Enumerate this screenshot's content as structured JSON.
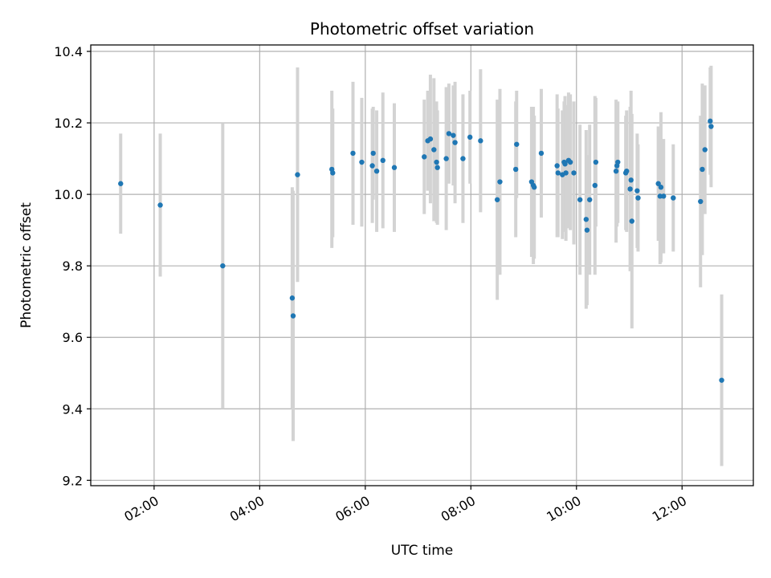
{
  "chart_data": {
    "type": "scatter",
    "title": "Photometric offset variation",
    "xlabel": "UTC time",
    "ylabel": "Photometric offset",
    "x_tick_labels": [
      "02:00",
      "04:00",
      "06:00",
      "08:00",
      "10:00",
      "12:00"
    ],
    "x_ticks_hours": [
      2,
      4,
      6,
      8,
      10,
      12
    ],
    "y_tick_labels": [
      "9.2",
      "9.4",
      "9.6",
      "9.8",
      "10.0",
      "10.2",
      "10.4"
    ],
    "y_ticks": [
      9.2,
      9.4,
      9.6,
      9.8,
      10.0,
      10.2,
      10.4
    ],
    "xlim_hours": [
      0.8,
      13.35
    ],
    "ylim": [
      9.185,
      10.418
    ],
    "grid": true,
    "colors": {
      "points": "#1f77b4",
      "error_bars": "#d3d3d3",
      "grid": "#b0b0b0"
    },
    "series": [
      {
        "x_utc": [
          "01:22",
          "02:07",
          "03:18",
          "04:37",
          "04:38",
          "04:43",
          "05:22",
          "05:23",
          "05:46",
          "05:56",
          "06:08",
          "06:09",
          "06:13",
          "06:20",
          "06:33",
          "07:07",
          "07:11",
          "07:14",
          "07:18",
          "07:21",
          "07:22",
          "07:32",
          "07:35",
          "07:40",
          "07:42",
          "07:51",
          "07:59",
          "08:11",
          "08:30",
          "08:33",
          "08:51",
          "08:52",
          "09:09",
          "09:11",
          "09:12",
          "09:20",
          "09:38",
          "09:39",
          "09:44",
          "09:46",
          "09:47",
          "09:48",
          "09:51",
          "09:53",
          "09:57",
          "10:04",
          "10:11",
          "10:12",
          "10:15",
          "10:21",
          "10:22",
          "10:45",
          "10:46",
          "10:47",
          "10:56",
          "10:57",
          "11:01",
          "11:02",
          "11:03",
          "11:09",
          "11:10",
          "11:33",
          "11:35",
          "11:36",
          "11:39",
          "11:50",
          "12:21",
          "12:23",
          "12:26",
          "12:32",
          "12:33",
          "12:45"
        ],
        "y": [
          10.03,
          9.97,
          9.8,
          9.71,
          9.66,
          10.055,
          10.07,
          10.06,
          10.115,
          10.09,
          10.08,
          10.115,
          10.065,
          10.095,
          10.075,
          10.105,
          10.15,
          10.155,
          10.125,
          10.09,
          10.075,
          10.1,
          10.17,
          10.165,
          10.145,
          10.1,
          10.16,
          10.15,
          9.985,
          10.035,
          10.07,
          10.14,
          10.035,
          10.025,
          10.02,
          10.115,
          10.08,
          10.06,
          10.055,
          10.09,
          10.085,
          10.06,
          10.095,
          10.09,
          10.06,
          9.985,
          9.93,
          9.9,
          9.985,
          10.025,
          10.09,
          10.065,
          10.08,
          10.09,
          10.06,
          10.065,
          10.015,
          10.04,
          9.925,
          10.01,
          9.99,
          10.03,
          9.995,
          10.02,
          9.995,
          9.99,
          9.98,
          10.07,
          10.125,
          10.205,
          10.19,
          9.48
        ],
        "y_err": [
          0.14,
          0.2,
          0.4,
          0.31,
          0.35,
          0.3,
          0.22,
          0.18,
          0.2,
          0.18,
          0.16,
          0.13,
          0.17,
          0.19,
          0.18,
          0.16,
          0.14,
          0.18,
          0.2,
          0.17,
          0.16,
          0.2,
          0.14,
          0.14,
          0.17,
          0.18,
          0.13,
          0.2,
          0.28,
          0.26,
          0.19,
          0.15,
          0.21,
          0.22,
          0.2,
          0.18,
          0.2,
          0.18,
          0.18,
          0.17,
          0.19,
          0.19,
          0.19,
          0.19,
          0.2,
          0.21,
          0.25,
          0.21,
          0.21,
          0.25,
          0.18,
          0.2,
          0.17,
          0.17,
          0.16,
          0.17,
          0.23,
          0.25,
          0.3,
          0.16,
          0.15,
          0.16,
          0.19,
          0.21,
          0.16,
          0.15,
          0.24,
          0.24,
          0.18,
          0.15,
          0.17,
          0.24
        ]
      }
    ]
  }
}
